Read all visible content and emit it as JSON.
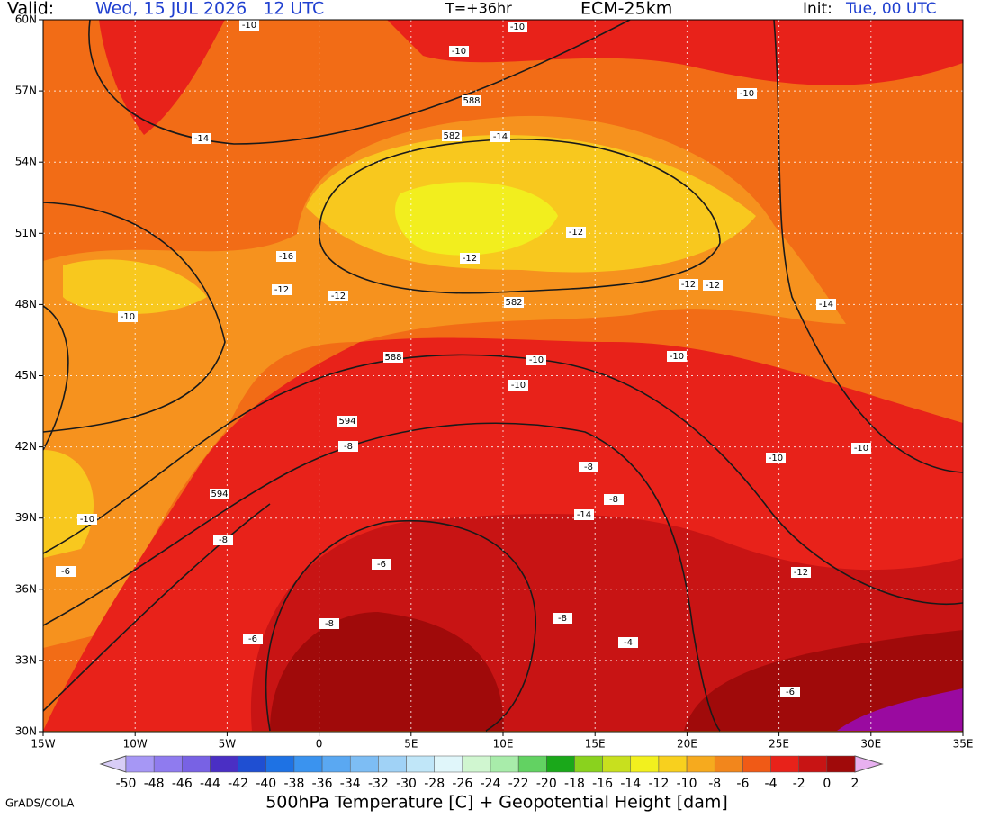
{
  "header": {
    "valid_label": "Valid:",
    "valid_time": "Wed, 15 JUL 2026   12 UTC",
    "lead": "T=+36hr",
    "model": "ECM-25km",
    "init_label": "Init:",
    "init_time": "Tue, 00 UTC"
  },
  "map": {
    "lon_labels": [
      "15W",
      "10W",
      "5W",
      "0",
      "5E",
      "10E",
      "15E",
      "20E",
      "25E",
      "30E",
      "35E"
    ],
    "lat_labels": [
      "60N",
      "57N",
      "54N",
      "51N",
      "48N",
      "45N",
      "42N",
      "39N",
      "36N",
      "33N",
      "30N"
    ],
    "contour_labels": [
      "-10",
      "-10",
      "-10",
      "-10",
      "588",
      "-14",
      "582",
      "-14",
      "-12",
      "-16",
      "-12",
      "-12",
      "-12",
      "582",
      "-12",
      "-12",
      "-14",
      "-10",
      "588",
      "-10",
      "-10",
      "-10",
      "594",
      "-8",
      "-8",
      "-10",
      "-10",
      "594",
      "-8",
      "-14",
      "-10",
      "-8",
      "-6",
      "-12",
      "-6",
      "-8",
      "-8",
      "-6",
      "-4",
      "-6"
    ]
  },
  "colorbar": {
    "ticks": [
      -50,
      -48,
      -46,
      -44,
      -42,
      -40,
      -38,
      -36,
      -34,
      -32,
      -30,
      -28,
      -26,
      -24,
      -22,
      -20,
      -18,
      -16,
      -14,
      -12,
      -10,
      -8,
      -6,
      -4,
      -2,
      0,
      2
    ],
    "colors": [
      "#a697f5",
      "#8f7bef",
      "#7862e4",
      "#4a2fc4",
      "#1f4fd2",
      "#1e72e4",
      "#3a93ef",
      "#5aa8f2",
      "#7dbdf4",
      "#a0d2f6",
      "#c0e6f8",
      "#e0f6fa",
      "#d0f6d0",
      "#a8ecaa",
      "#62d262",
      "#1aa81a",
      "#8ad21e",
      "#c8e01e",
      "#f2f01e",
      "#f8d01e",
      "#f6aa1e",
      "#f2861c",
      "#f05a16",
      "#e8221a",
      "#c81414",
      "#a00a0a"
    ],
    "under": "#d8cdf6",
    "over": "#e8b0f0"
  },
  "footer": {
    "credit": "GrADS/COLA",
    "caption": "500hPa Temperature [C] + Geopotential Height [dam]"
  }
}
